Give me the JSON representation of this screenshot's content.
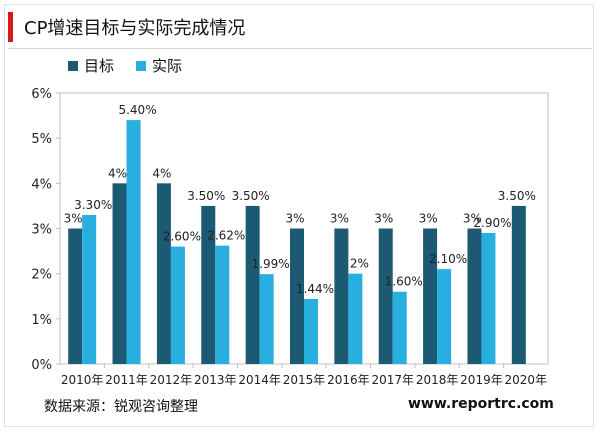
{
  "title": "CP增速目标与实际完成情况",
  "legend": [
    {
      "name": "目标",
      "color": "#1b5a72"
    },
    {
      "name": "实际",
      "color": "#29aee0"
    }
  ],
  "source": "数据来源：锐观咨询整理",
  "site": "www.reportrc.com",
  "chart_data": {
    "type": "bar",
    "categories": [
      "2010年",
      "2011年",
      "2012年",
      "2013年",
      "2014年",
      "2015年",
      "2016年",
      "2017年",
      "2018年",
      "2019年",
      "2020年"
    ],
    "ylim": [
      0,
      6
    ],
    "yticks": [
      "0%",
      "1%",
      "2%",
      "3%",
      "4%",
      "5%",
      "6%"
    ],
    "grid": false,
    "legend_position": "top-left",
    "series": [
      {
        "name": "目标",
        "color": "#1b5a72",
        "values": [
          3,
          4,
          4,
          3.5,
          3.5,
          3,
          3,
          3,
          3,
          3,
          3.5
        ],
        "labels": [
          "3%",
          "4%",
          "4%",
          "3.50%",
          "3.50%",
          "3%",
          "3%",
          "3%",
          "3%",
          "3%",
          "3.50%"
        ]
      },
      {
        "name": "实际",
        "color": "#29aee0",
        "values": [
          3.3,
          5.4,
          2.6,
          2.62,
          1.99,
          1.44,
          2,
          1.6,
          2.1,
          2.9,
          null
        ],
        "labels": [
          "3.30%",
          "5.40%",
          "2.60%",
          "2.62%",
          "1.99%",
          "1.44%",
          "2%",
          "1.60%",
          "2.10%",
          "2.90%",
          ""
        ]
      }
    ]
  }
}
